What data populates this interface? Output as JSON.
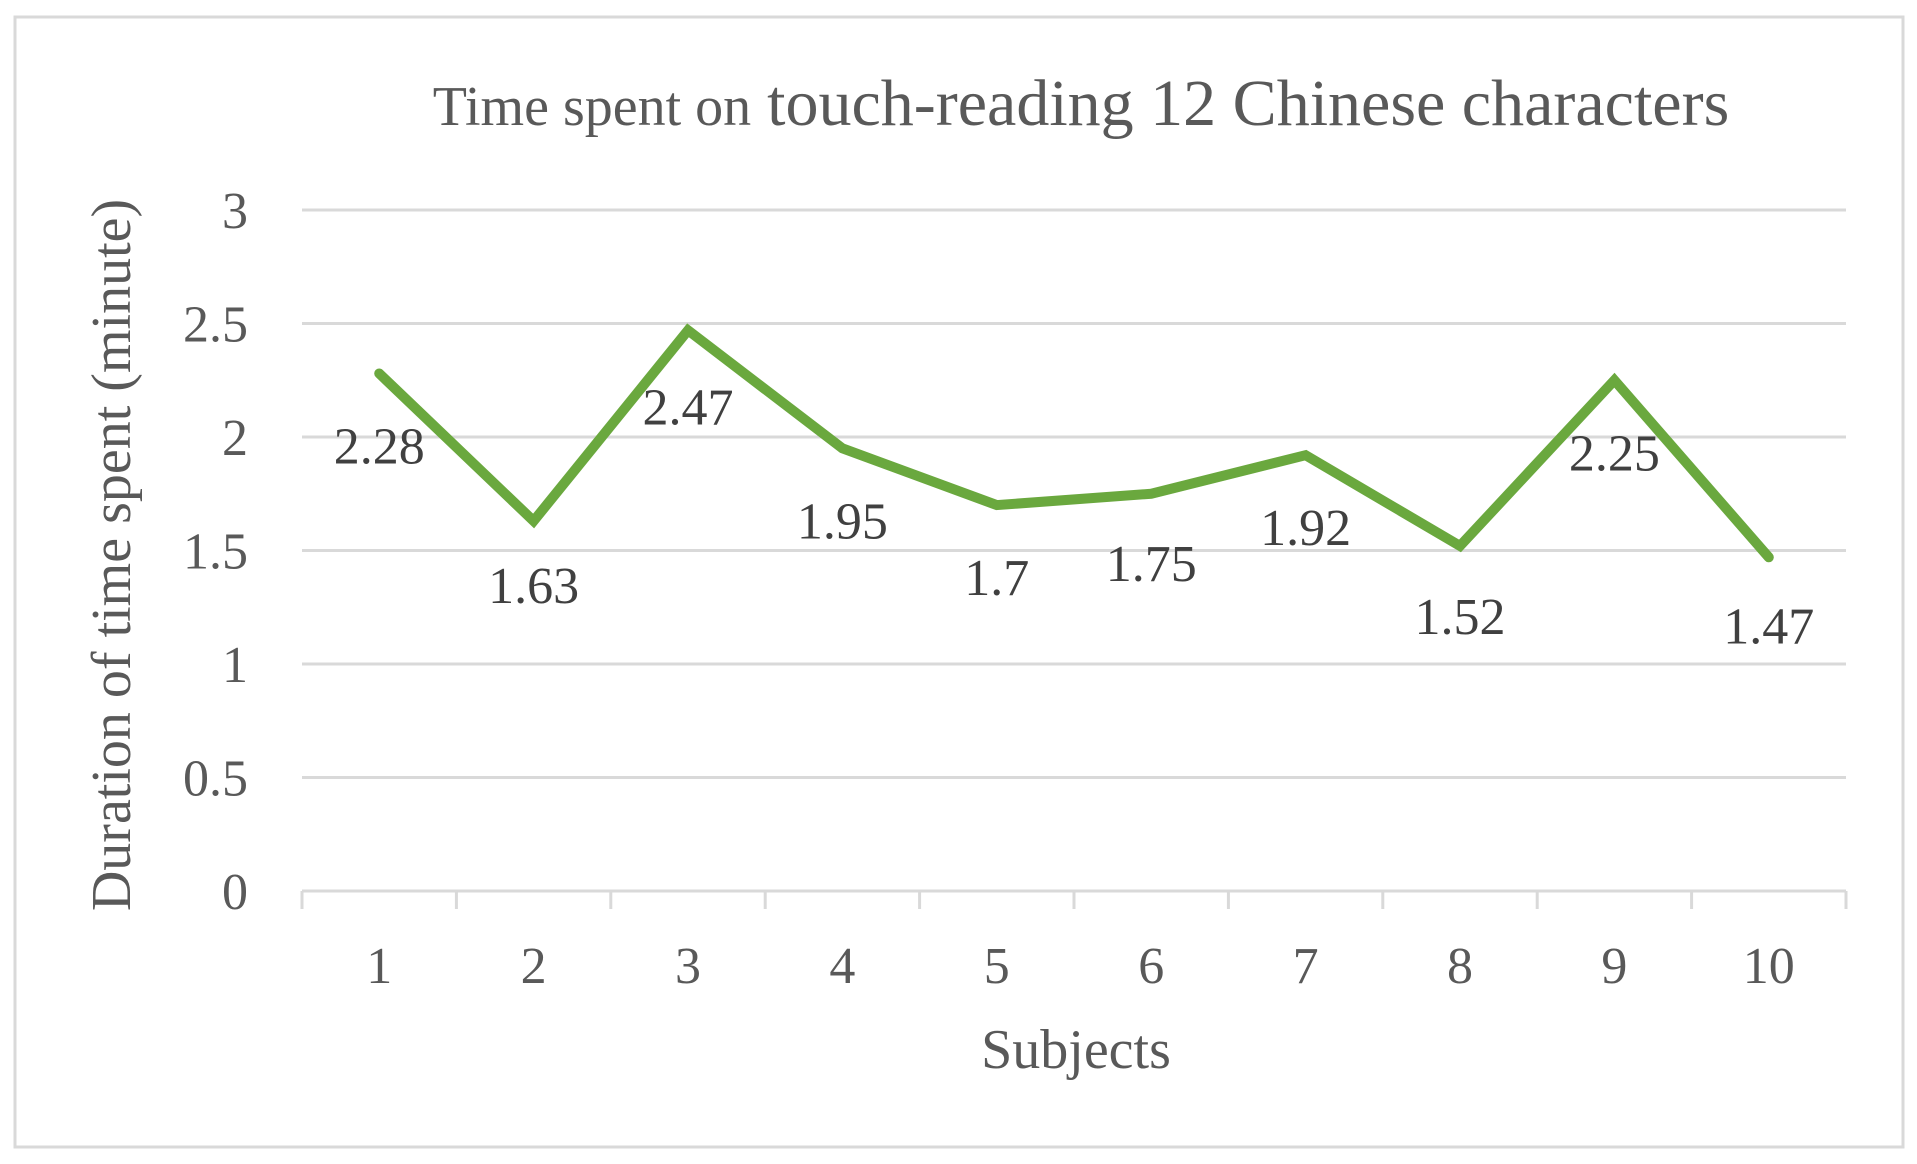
{
  "chart_data": {
    "type": "line",
    "title_prefix": "Time spent on",
    "title_main": "touch-reading 12 Chinese characters",
    "xlabel": "Subjects",
    "ylabel": "Duration of time spent (minute)",
    "categories": [
      "1",
      "2",
      "3",
      "4",
      "5",
      "6",
      "7",
      "8",
      "9",
      "10"
    ],
    "series": [
      {
        "values": [
          2.28,
          1.63,
          2.47,
          1.95,
          1.7,
          1.75,
          1.92,
          1.52,
          2.25,
          1.47
        ],
        "labels": [
          "2.28",
          "1.63",
          "2.47",
          "1.95",
          "1.7",
          "1.75",
          "1.92",
          "1.52",
          "2.25",
          "1.47"
        ],
        "color": "#6aa83e"
      }
    ],
    "ylim": [
      0,
      3
    ],
    "yticks": [
      "0",
      "0.5",
      "1",
      "1.5",
      "2",
      "2.5",
      "3"
    ],
    "grid": true,
    "legend": "none",
    "colors": {
      "grid": "#d9d9d9",
      "frame": "#d9d9d9",
      "text": "#595959",
      "data_label": "#404040"
    }
  }
}
